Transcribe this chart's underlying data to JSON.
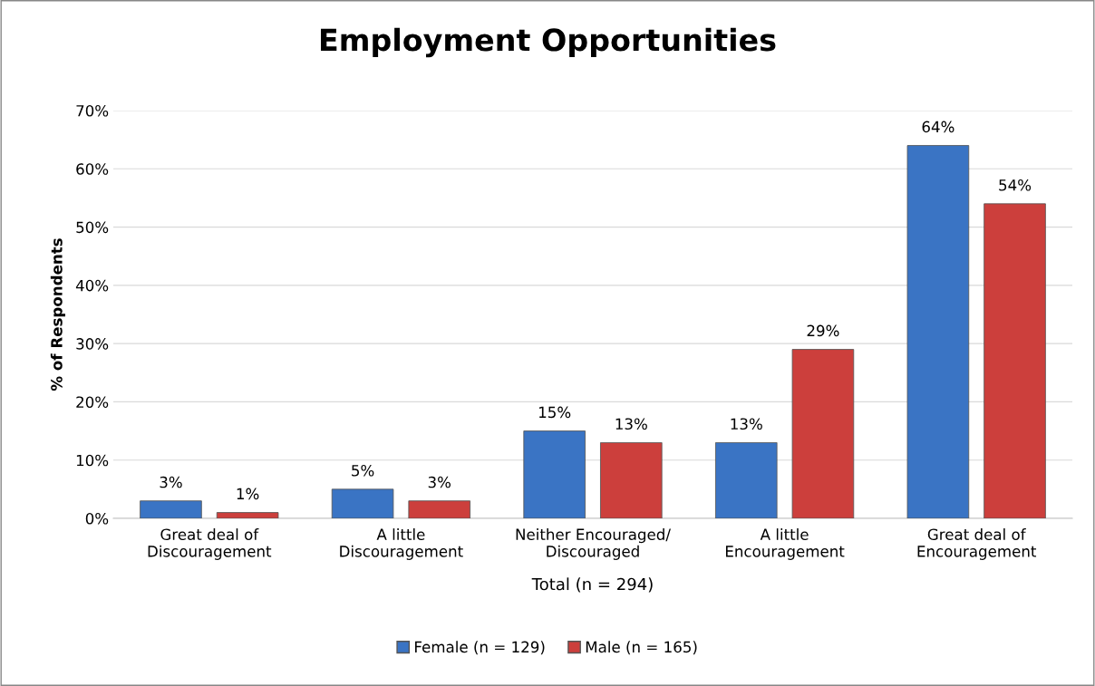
{
  "chart_data": {
    "type": "bar",
    "title": "Employment Opportunities",
    "xlabel": "Total (n = 294)",
    "ylabel": "% of Respondents",
    "categories": [
      "Great deal of\nDiscouragement",
      "A little\nDiscouragement",
      "Neither Encouraged/\nDiscouraged",
      "A little\nEncouragement",
      "Great deal of\nEncouragement"
    ],
    "series": [
      {
        "name": "Female (n = 129)",
        "color": "#3a74c4",
        "values": [
          3,
          5,
          15,
          13,
          64
        ],
        "value_labels": [
          "3%",
          "5%",
          "15%",
          "13%",
          "64%"
        ]
      },
      {
        "name": "Male (n = 165)",
        "color": "#cc3f3c",
        "values": [
          1,
          3,
          13,
          29,
          54
        ],
        "value_labels": [
          "1%",
          "3%",
          "13%",
          "29%",
          "54%"
        ]
      }
    ],
    "ylim": [
      0,
      70
    ],
    "yticks": [
      {
        "value": 0,
        "label": "0%"
      },
      {
        "value": 10,
        "label": "10%"
      },
      {
        "value": 20,
        "label": "20%"
      },
      {
        "value": 30,
        "label": "30%"
      },
      {
        "value": 40,
        "label": "40%"
      },
      {
        "value": 50,
        "label": "50%"
      },
      {
        "value": 60,
        "label": "60%"
      },
      {
        "value": 70,
        "label": "70%"
      }
    ],
    "grid": "y",
    "legend": "bottom"
  }
}
